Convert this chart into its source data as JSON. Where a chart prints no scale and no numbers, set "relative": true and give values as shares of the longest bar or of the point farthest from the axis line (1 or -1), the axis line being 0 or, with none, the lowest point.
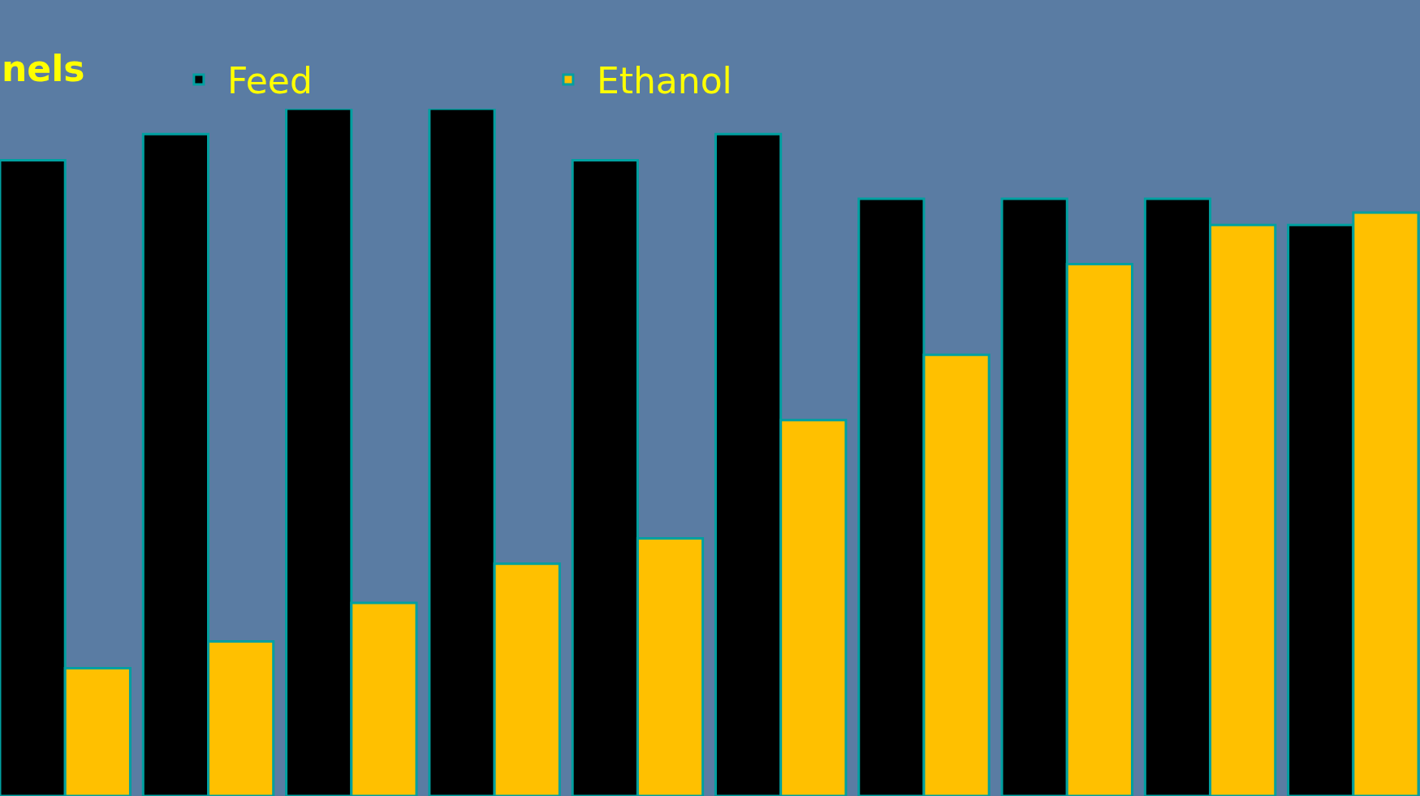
{
  "chart_data": {
    "type": "bar",
    "relative": true,
    "legend": "top",
    "annotations": [
      "nels"
    ],
    "categories": [
      null,
      null,
      null,
      null,
      null,
      null,
      null,
      null,
      null,
      null
    ],
    "series": [
      {
        "name": "Feed",
        "color": "#000000",
        "values": [
          0.925,
          0.963,
          1,
          1,
          0.925,
          0.963,
          0.869,
          0.869,
          0.869,
          0.831
        ]
      },
      {
        "name": "Ethanol",
        "color": "#ffc000",
        "values": [
          0.186,
          0.225,
          0.281,
          0.338,
          0.375,
          0.547,
          0.642,
          0.774,
          0.831,
          0.849
        ]
      }
    ]
  }
}
